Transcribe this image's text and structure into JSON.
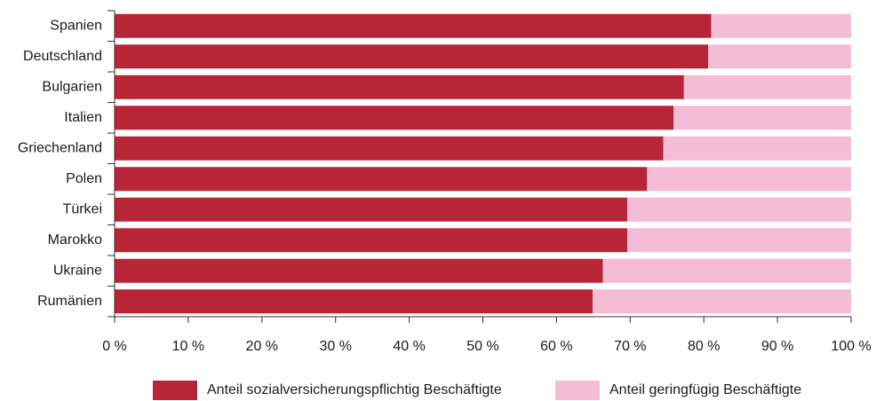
{
  "chart_data": {
    "type": "stacked-bar-horizontal",
    "categories": [
      "Spanien",
      "Deutschland",
      "Bulgarien",
      "Italien",
      "Griechenland",
      "Polen",
      "Türkei",
      "Marokko",
      "Ukraine",
      "Rumänien"
    ],
    "series": [
      {
        "name": "Anteil sozialversicherungspflichtig Beschäftigte",
        "color": "#b82536",
        "values": [
          81.0,
          80.6,
          77.3,
          75.9,
          74.5,
          72.3,
          69.6,
          69.6,
          66.3,
          64.9
        ]
      },
      {
        "name": "Anteil geringfügig Beschäftigte",
        "color": "#f5bcd5",
        "values": [
          19.0,
          19.4,
          22.7,
          24.1,
          25.5,
          27.7,
          30.4,
          30.4,
          33.7,
          35.1
        ]
      }
    ],
    "xlim": [
      0,
      100
    ],
    "xticks": [
      {
        "value": 0,
        "label": "0 %"
      },
      {
        "value": 10,
        "label": "10 %"
      },
      {
        "value": 20,
        "label": "20 %"
      },
      {
        "value": 30,
        "label": "30 %"
      },
      {
        "value": 40,
        "label": "40 %"
      },
      {
        "value": 50,
        "label": "50 %"
      },
      {
        "value": 60,
        "label": "60 %"
      },
      {
        "value": 70,
        "label": "70 %"
      },
      {
        "value": 80,
        "label": "80 %"
      },
      {
        "value": 90,
        "label": "90 %"
      },
      {
        "value": 100,
        "label": "100 %"
      }
    ],
    "legend": "bottom"
  }
}
